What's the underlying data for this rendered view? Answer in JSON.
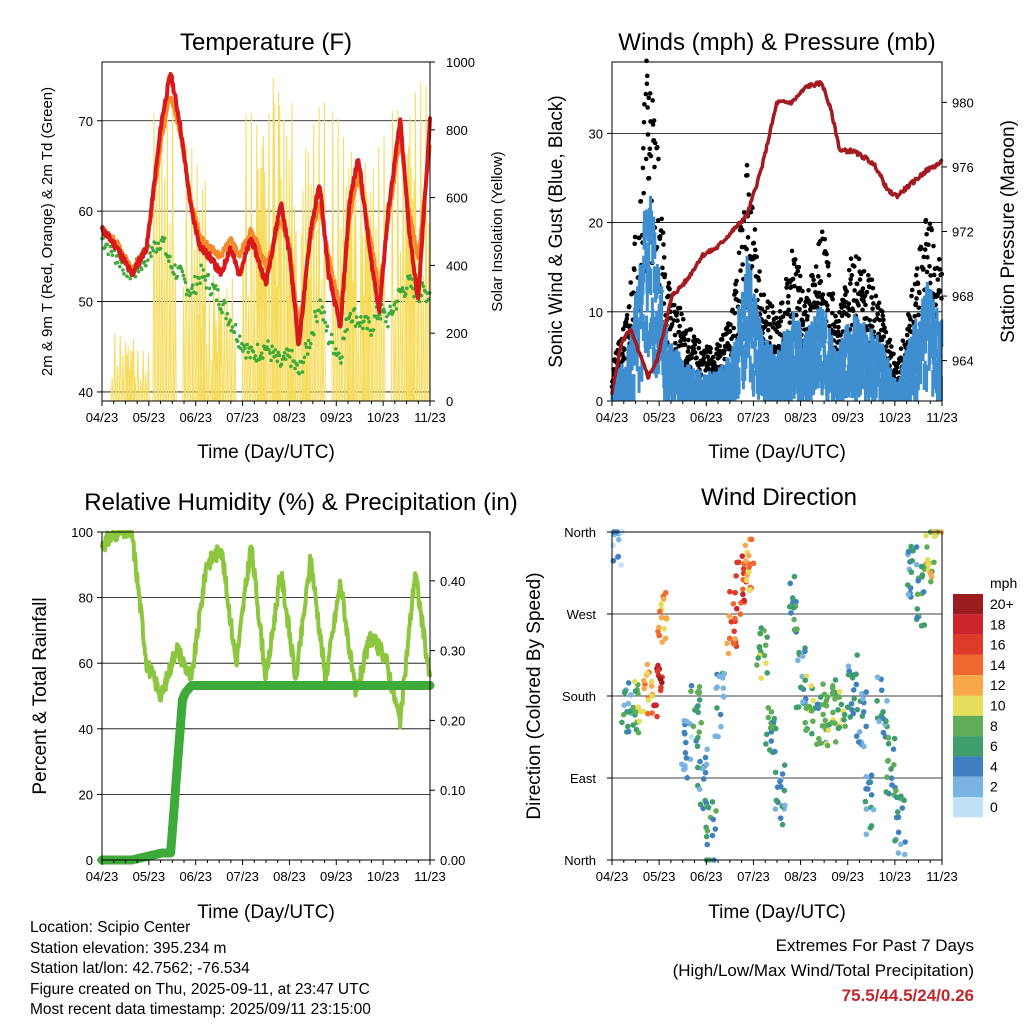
{
  "panels": {
    "temperature": {
      "title": "Temperature (F)",
      "ylabel": "2m & 9m T (Red, Orange) & 2m Td (Green)",
      "ylabel_right": "Solar Insolation (Yellow)",
      "xlabel": "Time (Day/UTC)"
    },
    "winds": {
      "title": "Winds (mph) & Pressure (mb)",
      "ylabel": "Sonic Wind & Gust (Blue, Black)",
      "ylabel_right": "Station Pressure (Maroon)",
      "xlabel": "Time (Day/UTC)"
    },
    "humidity": {
      "title": "Relative Humidity (%) & Precipitation (in)",
      "ylabel": "Percent & Total Rainfall",
      "xlabel": "Time (Day/UTC)"
    },
    "direction": {
      "title": "Wind Direction",
      "ylabel": "Direction (Colored By Speed)",
      "xlabel": "Time (Day/UTC)",
      "legend_title": "mph",
      "legend_labels": [
        "20+",
        "18",
        "16",
        "14",
        "12",
        "10",
        "8",
        "6",
        "4",
        "2",
        "0"
      ],
      "legend_colors": [
        "#9b1b1e",
        "#c9252b",
        "#df3a28",
        "#f0672f",
        "#f8a84a",
        "#e5dd5c",
        "#5fae57",
        "#3e9f6a",
        "#3f80bf",
        "#79b4e3",
        "#bfe2f7"
      ]
    }
  },
  "info": {
    "location": "Location: Scipio Center",
    "elevation": "Station elevation: 395.234 m",
    "latlon": "Station lat/lon: 42.7562; -76.534",
    "created": "Figure created on Thu, 2025-09-11, at 23:47 UTC",
    "recent": "Most recent data timestamp: 2025/09/11 23:15:00"
  },
  "extremes": {
    "title": "Extremes For Past 7 Days",
    "subtitle": "(High/Low/Max Wind/Total Precipitation)",
    "value": "75.5/44.5/24/0.26"
  },
  "chart_data": [
    {
      "type": "line",
      "title": "Temperature (F)",
      "xlabel": "Time (Day/UTC)",
      "ylabel": "2m & 9m T (Red, Orange) & 2m Td (Green)",
      "ylabel_right": "Solar Insolation (Yellow)",
      "x_ticks": [
        "04/23",
        "05/23",
        "06/23",
        "07/23",
        "08/23",
        "09/23",
        "10/23",
        "11/23"
      ],
      "ylim": [
        39,
        76.5
      ],
      "y_ticks": [
        40,
        50,
        60,
        70
      ],
      "y2lim": [
        0,
        1000
      ],
      "y2_ticks": [
        0,
        200,
        400,
        600,
        800,
        1000
      ],
      "series": [
        {
          "color": "#d7191c",
          "axis": "left",
          "x": [
            0,
            0.5,
            1,
            1.5,
            2,
            2.3,
            2.6,
            3,
            3.3,
            3.6,
            4,
            4.3,
            4.6,
            5,
            5.5,
            6,
            6.3,
            6.6,
            7,
            7.3,
            7.6,
            8,
            8.3,
            8.6,
            9,
            9.3,
            9.6,
            10,
            10.3,
            10.6,
            11
          ],
          "y": [
            58,
            56,
            53,
            56,
            70,
            75.3,
            70,
            60,
            56,
            55,
            53,
            56,
            53,
            57,
            52,
            61,
            55,
            45,
            58,
            63,
            53,
            47,
            61,
            66,
            55,
            49,
            60,
            70,
            58,
            50,
            70
          ]
        },
        {
          "color": "#f58a2c",
          "axis": "left",
          "x": [
            0,
            0.5,
            1,
            1.5,
            2,
            2.3,
            2.6,
            3,
            3.3,
            3.6,
            4,
            4.3,
            4.6,
            5,
            5.5,
            6,
            6.3,
            6.6,
            7,
            7.3,
            7.6,
            8,
            8.3,
            8.6,
            9,
            9.3,
            9.6,
            10,
            10.3,
            10.6,
            11
          ],
          "y": [
            58,
            56.5,
            53.5,
            56,
            68,
            73,
            69,
            61,
            57,
            56,
            55,
            57,
            55,
            58,
            54,
            59,
            56,
            47,
            57,
            61,
            55,
            49,
            59,
            64,
            57,
            51,
            59,
            68,
            60,
            55,
            67
          ]
        },
        {
          "color": "#3daa3a",
          "axis": "left",
          "x": [
            0,
            0.5,
            1,
            1.5,
            2,
            2.3,
            2.6,
            3,
            3.3,
            3.6,
            4,
            4.3,
            4.6,
            5,
            5.5,
            6,
            6.3,
            6.6,
            7,
            7.3,
            7.6,
            8,
            8.3,
            8.6,
            9,
            9.3,
            9.6,
            10,
            10.3,
            10.6,
            11
          ],
          "y": [
            57,
            55,
            53,
            55,
            57,
            54,
            53,
            51,
            53,
            52,
            50,
            48,
            46,
            44,
            45,
            43,
            44,
            42,
            46,
            50,
            46,
            44,
            49,
            48,
            47,
            49,
            48,
            51,
            52,
            51,
            51
          ]
        },
        {
          "color": "#f6dc5b",
          "axis": "right",
          "x": [
            0.7,
            1.2,
            2.1,
            3.1,
            3.6,
            4.1,
            5.1,
            5.6,
            6.1,
            6.6,
            7.1,
            8.1,
            8.6,
            9.1,
            10.1,
            10.6
          ],
          "y": [
            200,
            150,
            900,
            760,
            300,
            380,
            850,
            880,
            960,
            500,
            880,
            850,
            640,
            780,
            860,
            940
          ]
        }
      ]
    },
    {
      "type": "line",
      "title": "Winds (mph) & Pressure (mb)",
      "xlabel": "Time (Day/UTC)",
      "ylabel": "Sonic Wind & Gust (Blue, Black)",
      "ylabel_right": "Station Pressure (Maroon)",
      "x_ticks": [
        "04/23",
        "05/23",
        "06/23",
        "07/23",
        "08/23",
        "09/23",
        "10/23",
        "11/23"
      ],
      "ylim": [
        0,
        38
      ],
      "y_ticks": [
        0,
        10,
        20,
        30
      ],
      "y2lim": [
        961.5,
        982.5
      ],
      "y2_ticks": [
        964,
        968,
        972,
        976,
        980
      ],
      "series": [
        {
          "name": "Gust",
          "color": "#000000",
          "x": [
            0,
            0.5,
            1,
            1.2,
            1.5,
            1.8,
            2,
            2.5,
            3,
            3.5,
            4,
            4.5,
            5,
            5.5,
            6,
            6.5,
            7,
            7.5,
            8,
            8.5,
            9,
            9.5,
            10,
            10.5,
            11
          ],
          "y": [
            3,
            8,
            22,
            35,
            24,
            12,
            10,
            7,
            5,
            5,
            8,
            22,
            10,
            8,
            14,
            10,
            16,
            8,
            14,
            12,
            9,
            3,
            10,
            17,
            12
          ]
        },
        {
          "name": "Wind",
          "color": "#3f8ed0",
          "x": [
            0,
            0.5,
            1,
            1.2,
            1.5,
            1.8,
            2,
            2.5,
            3,
            3.5,
            4,
            4.5,
            5,
            5.5,
            6,
            6.5,
            7,
            7.5,
            8,
            8.5,
            9,
            9.5,
            10,
            10.5,
            11
          ],
          "y": [
            2,
            5,
            15,
            24,
            15,
            8,
            6,
            4,
            3,
            3,
            5,
            15,
            7,
            5,
            9,
            7,
            10,
            5,
            9,
            8,
            6,
            2,
            7,
            12,
            8
          ]
        },
        {
          "name": "Pressure",
          "color": "#a31b20",
          "x": [
            0,
            0.3,
            0.6,
            1.2,
            1.5,
            2,
            2.5,
            3,
            3.5,
            4,
            4.5,
            5,
            5.5,
            6,
            6.5,
            7,
            7.3,
            7.6,
            8,
            8.5,
            8.8,
            9.2,
            9.5,
            10,
            10.5,
            11
          ],
          "y": [
            962,
            965,
            966,
            963,
            964,
            968,
            969,
            970.5,
            971,
            972,
            973,
            976,
            980,
            980,
            981,
            981.2,
            979.5,
            977,
            977,
            976.5,
            976,
            974.5,
            974.2,
            975,
            975.8,
            976.3
          ]
        }
      ]
    },
    {
      "type": "line",
      "title": "Relative Humidity (%) & Precipitation (in)",
      "xlabel": "Time (Day/UTC)",
      "ylabel": "Percent & Total Rainfall",
      "x_ticks": [
        "04/23",
        "05/23",
        "06/23",
        "07/23",
        "08/23",
        "09/23",
        "10/23",
        "11/23"
      ],
      "ylim": [
        0,
        100
      ],
      "y_ticks": [
        0,
        20,
        40,
        60,
        80,
        100
      ],
      "y2lim": [
        0,
        0.47
      ],
      "y2_ticks": [
        "0.00",
        "0.10",
        "0.20",
        "0.30",
        "0.40"
      ],
      "series": [
        {
          "name": "Relative Humidity",
          "color": "#8cc63f",
          "x": [
            0,
            0.5,
            1,
            1.5,
            2,
            2.5,
            3,
            3.5,
            4,
            4.5,
            5,
            5.5,
            6,
            6.5,
            7,
            7.5,
            8,
            8.5,
            9,
            9.5,
            10,
            10.5,
            11
          ],
          "y": [
            96,
            100,
            100,
            60,
            50,
            65,
            55,
            90,
            95,
            60,
            96,
            55,
            88,
            55,
            92,
            55,
            85,
            50,
            68,
            62,
            42,
            88,
            55
          ]
        },
        {
          "name": "Total Rainfall",
          "color": "#3daa3a",
          "x": [
            0,
            1,
            2,
            2.3,
            2.5,
            2.7,
            2.8,
            3,
            4,
            5,
            6,
            7,
            8,
            9,
            10,
            11
          ],
          "y": [
            0.0,
            0.0,
            0.01,
            0.01,
            0.12,
            0.23,
            0.24,
            0.25,
            0.25,
            0.25,
            0.25,
            0.25,
            0.25,
            0.25,
            0.25,
            0.25
          ]
        }
      ]
    },
    {
      "type": "scatter",
      "title": "Wind Direction",
      "xlabel": "Time (Day/UTC)",
      "ylabel": "Direction (Colored By Speed)",
      "x_ticks": [
        "04/23",
        "05/23",
        "06/23",
        "07/23",
        "08/23",
        "09/23",
        "10/23",
        "11/23"
      ],
      "y_ticks": [
        "North",
        "East",
        "South",
        "West",
        "North"
      ],
      "legend_title": "mph",
      "series": [
        {
          "name": "Wind Direction",
          "x": [
            0.2,
            0.5,
            0.8,
            1.2,
            1.5,
            1.7,
            2.5,
            2.8,
            3,
            3.3,
            3.6,
            4,
            4.3,
            4.6,
            5,
            5.3,
            5.6,
            6,
            6.3,
            6.6,
            7,
            7.3,
            7.6,
            8,
            8.3,
            8.6,
            9,
            9.3,
            9.6,
            10,
            10.3,
            10.6,
            10.9
          ],
          "y": [
            350,
            160,
            170,
            185,
            180,
            270,
            120,
            160,
            90,
            30,
            170,
            260,
            300,
            330,
            220,
            150,
            70,
            280,
            200,
            170,
            160,
            160,
            170,
            190,
            150,
            60,
            170,
            100,
            40,
            320,
            290,
            340,
            360
          ],
          "speed": [
            2,
            5,
            8,
            12,
            18,
            12,
            2,
            6,
            4,
            6,
            4,
            14,
            16,
            12,
            8,
            6,
            4,
            6,
            4,
            8,
            6,
            8,
            8,
            4,
            4,
            4,
            4,
            6,
            4,
            4,
            6,
            10,
            10
          ]
        }
      ]
    }
  ]
}
